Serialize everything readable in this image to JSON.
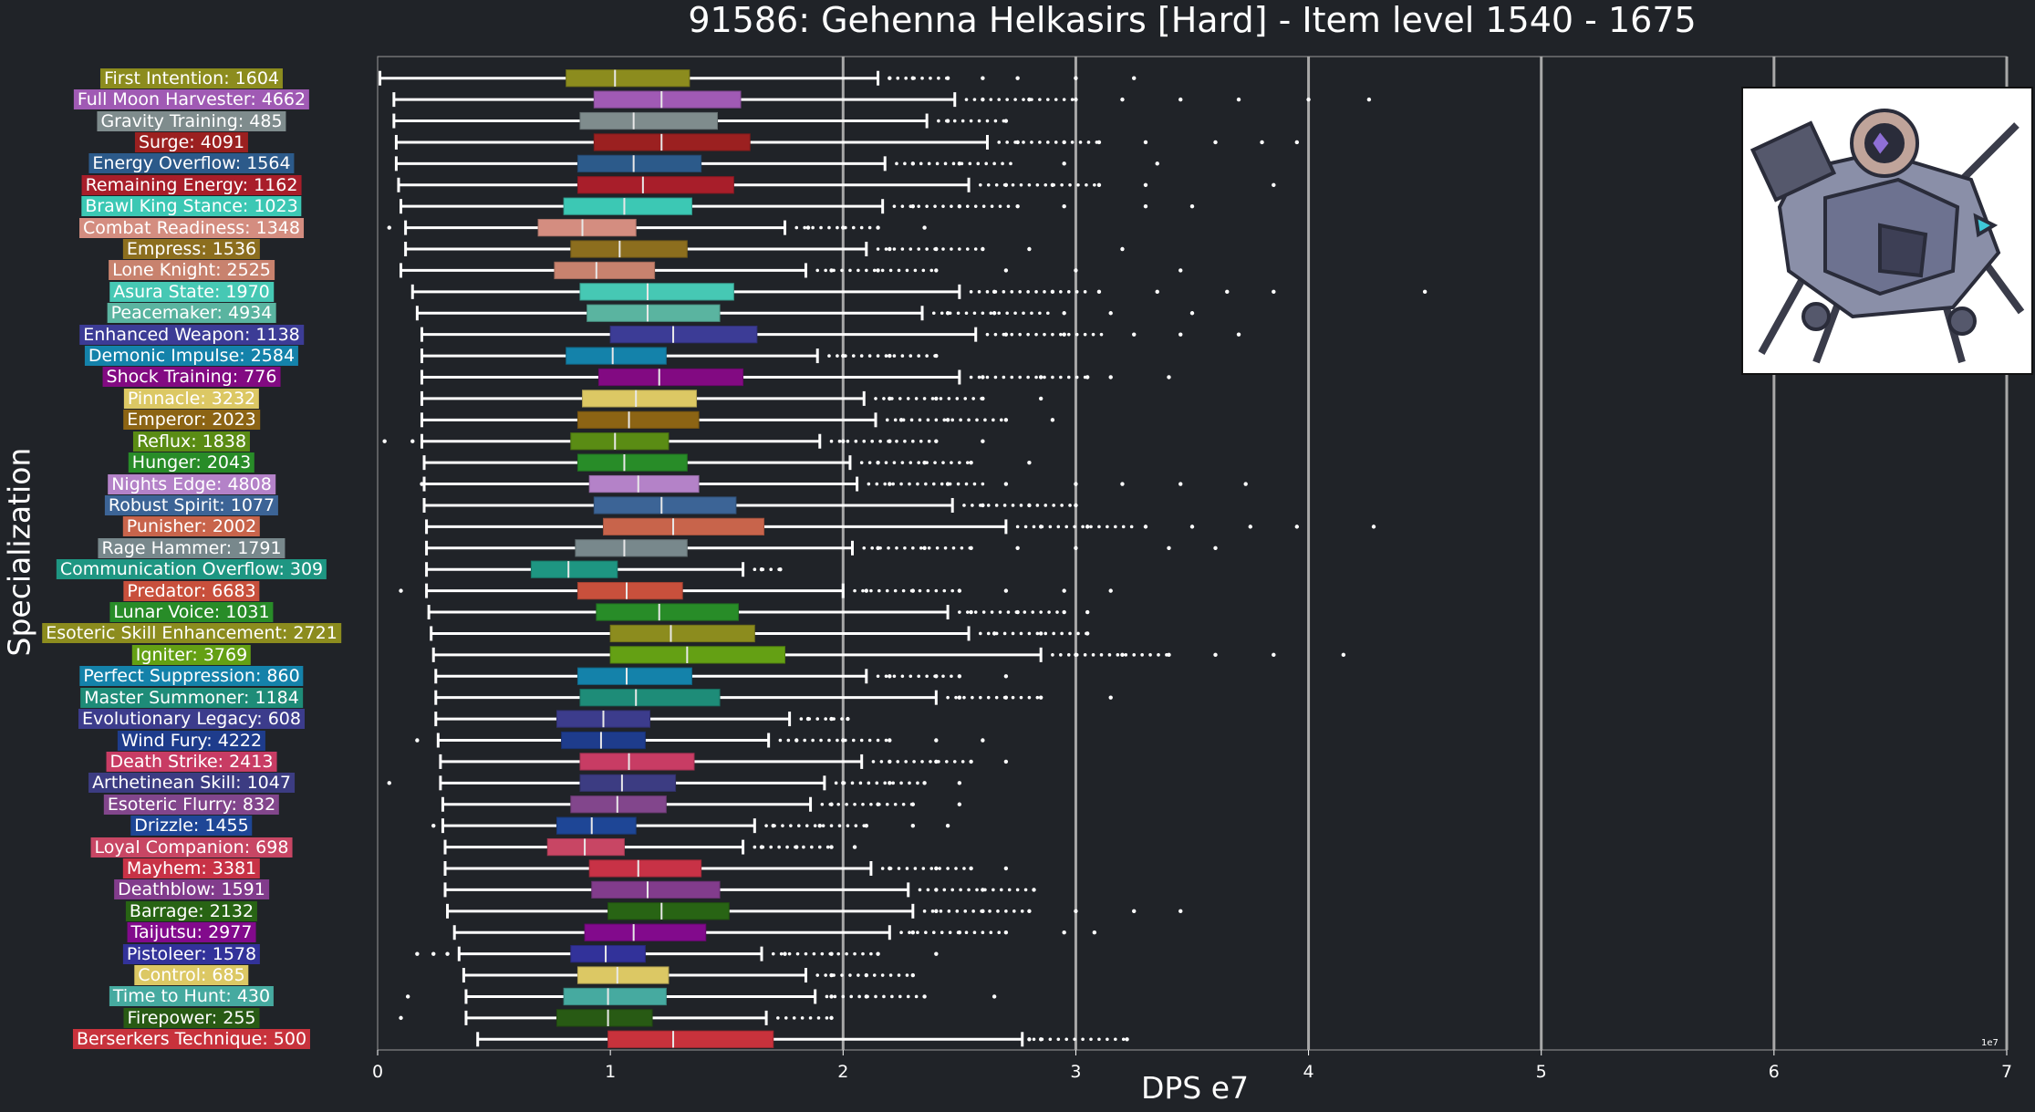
{
  "title": "91586: Gehenna Helkasirs [Hard] - Item level 1540 - 1675",
  "xlabel": "DPS e7",
  "ylabel": "Specialization",
  "exponent_label": "1e7",
  "boss_portrait": "helkasirs-portrait",
  "chart_data": {
    "type": "boxplot",
    "orientation": "horizontal",
    "xlim": [
      0,
      7
    ],
    "x_ticks": [
      0,
      1,
      2,
      3,
      4,
      5,
      6,
      7
    ],
    "x_grid": true,
    "grid_lines": [
      2,
      3,
      4,
      5,
      6,
      7
    ],
    "units": "1e7",
    "series": [
      {
        "label": "First Intention: 1604",
        "color": "#8c8c1e",
        "min": 0.01,
        "q1": 0.81,
        "median": 1.02,
        "q3": 1.34,
        "max": 2.15,
        "outliers": [
          2.2,
          2.3,
          2.45,
          2.6,
          2.75,
          3.0,
          3.25
        ]
      },
      {
        "label": "Full Moon Harvester: 4662",
        "color": "#a05ab4",
        "min": 0.07,
        "q1": 0.93,
        "median": 1.22,
        "q3": 1.56,
        "max": 2.48,
        "outliers": [
          2.6,
          2.8,
          3.0,
          3.2,
          3.45,
          3.7,
          4.0,
          4.26
        ]
      },
      {
        "label": "Gravity Training: 485",
        "color": "#7f8c8d",
        "min": 0.07,
        "q1": 0.87,
        "median": 1.1,
        "q3": 1.46,
        "max": 2.36,
        "outliers": [
          2.45,
          2.7
        ]
      },
      {
        "label": "Surge: 4091",
        "color": "#9b2020",
        "min": 0.08,
        "q1": 0.93,
        "median": 1.22,
        "q3": 1.6,
        "max": 2.62,
        "outliers": [
          2.75,
          2.95,
          3.1,
          3.3,
          3.6,
          3.8,
          3.95
        ]
      },
      {
        "label": "Energy Overflow: 1564",
        "color": "#2c5a8a",
        "min": 0.08,
        "q1": 0.86,
        "median": 1.1,
        "q3": 1.39,
        "max": 2.18,
        "outliers": [
          2.3,
          2.5,
          2.95,
          3.35
        ]
      },
      {
        "label": "Remaining Energy: 1162",
        "color": "#a81e2a",
        "min": 0.09,
        "q1": 0.86,
        "median": 1.14,
        "q3": 1.53,
        "max": 2.54,
        "outliers": [
          2.7,
          2.9,
          3.1,
          3.3,
          3.85
        ]
      },
      {
        "label": "Brawl King Stance: 1023",
        "color": "#3cc8b4",
        "min": 0.1,
        "q1": 0.8,
        "median": 1.06,
        "q3": 1.35,
        "max": 2.17,
        "outliers": [
          2.3,
          2.5,
          2.75,
          2.95,
          3.3,
          3.5
        ]
      },
      {
        "label": "Combat Readiness: 1348",
        "color": "#d48d80",
        "min": 0.12,
        "q1": 0.69,
        "median": 0.88,
        "q3": 1.11,
        "max": 1.75,
        "outliers": [
          0.05,
          1.85,
          2.0,
          2.15,
          2.35
        ]
      },
      {
        "label": "Empress: 1536",
        "color": "#8c6e1e",
        "min": 0.12,
        "q1": 0.83,
        "median": 1.04,
        "q3": 1.33,
        "max": 2.1,
        "outliers": [
          2.2,
          2.4,
          2.6,
          2.8,
          3.2
        ]
      },
      {
        "label": "Lone Knight: 2525",
        "color": "#c8826e",
        "min": 0.1,
        "q1": 0.76,
        "median": 0.94,
        "q3": 1.19,
        "max": 1.84,
        "outliers": [
          1.95,
          2.15,
          2.4,
          2.7,
          3.0,
          3.45
        ]
      },
      {
        "label": "Asura State: 1970",
        "color": "#46c8b4",
        "min": 0.15,
        "q1": 0.87,
        "median": 1.16,
        "q3": 1.53,
        "max": 2.5,
        "outliers": [
          2.65,
          2.9,
          3.1,
          3.35,
          3.65,
          3.85,
          4.5
        ]
      },
      {
        "label": "Peacemaker: 4934",
        "color": "#5ab4a0",
        "min": 0.17,
        "q1": 0.9,
        "median": 1.16,
        "q3": 1.47,
        "max": 2.34,
        "outliers": [
          2.45,
          2.65,
          2.95,
          3.15,
          3.5
        ]
      },
      {
        "label": "Enhanced Weapon: 1138",
        "color": "#3c3c96",
        "min": 0.19,
        "q1": 1.0,
        "median": 1.27,
        "q3": 1.63,
        "max": 2.57,
        "outliers": [
          2.7,
          2.95,
          3.25,
          3.45,
          3.7
        ]
      },
      {
        "label": "Demonic Impulse: 2584",
        "color": "#1482aa",
        "min": 0.19,
        "q1": 0.81,
        "median": 1.01,
        "q3": 1.24,
        "max": 1.89,
        "outliers": [
          2.0,
          2.2,
          2.4
        ]
      },
      {
        "label": "Shock Training: 776",
        "color": "#820a82",
        "min": 0.19,
        "q1": 0.95,
        "median": 1.21,
        "q3": 1.57,
        "max": 2.5,
        "outliers": [
          2.6,
          2.85,
          3.05,
          3.15,
          3.4
        ]
      },
      {
        "label": "Pinnacle: 3232",
        "color": "#dcc864",
        "min": 0.19,
        "q1": 0.88,
        "median": 1.11,
        "q3": 1.37,
        "max": 2.09,
        "outliers": [
          2.2,
          2.4,
          2.6,
          2.85
        ]
      },
      {
        "label": "Emperor: 2023",
        "color": "#8c6414",
        "min": 0.19,
        "q1": 0.86,
        "median": 1.08,
        "q3": 1.38,
        "max": 2.14,
        "outliers": [
          2.25,
          2.45,
          2.7,
          2.9
        ]
      },
      {
        "label": "Reflux: 1838",
        "color": "#5a8c14",
        "min": 0.19,
        "q1": 0.83,
        "median": 1.02,
        "q3": 1.25,
        "max": 1.9,
        "outliers": [
          0.03,
          0.15,
          2.0,
          2.2,
          2.4,
          2.6
        ]
      },
      {
        "label": "Hunger: 2043",
        "color": "#288c28",
        "min": 0.2,
        "q1": 0.86,
        "median": 1.06,
        "q3": 1.33,
        "max": 2.03,
        "outliers": [
          2.15,
          2.35,
          2.55,
          2.8
        ]
      },
      {
        "label": "Nights Edge: 4808",
        "color": "#b482c8",
        "min": 0.2,
        "q1": 0.91,
        "median": 1.12,
        "q3": 1.38,
        "max": 2.06,
        "outliers": [
          0.19,
          2.2,
          2.45,
          2.7,
          3.0,
          3.2,
          3.45,
          3.73
        ]
      },
      {
        "label": "Robust Spirit: 1077",
        "color": "#3c6496",
        "min": 0.2,
        "q1": 0.93,
        "median": 1.22,
        "q3": 1.54,
        "max": 2.47,
        "outliers": [
          2.6,
          2.8,
          3.0
        ]
      },
      {
        "label": "Punisher: 2002",
        "color": "#c8644b",
        "min": 0.21,
        "q1": 0.97,
        "median": 1.27,
        "q3": 1.66,
        "max": 2.7,
        "outliers": [
          2.85,
          3.05,
          3.3,
          3.5,
          3.75,
          3.95,
          4.28
        ]
      },
      {
        "label": "Rage Hammer: 1791",
        "color": "#78888c",
        "min": 0.21,
        "q1": 0.85,
        "median": 1.06,
        "q3": 1.33,
        "max": 2.04,
        "outliers": [
          2.15,
          2.35,
          2.55,
          2.75,
          3.0,
          3.4,
          3.6
        ]
      },
      {
        "label": "Communication Overflow: 309",
        "color": "#1e9682",
        "min": 0.21,
        "q1": 0.66,
        "median": 0.82,
        "q3": 1.03,
        "max": 1.57,
        "outliers": [
          1.65,
          1.73
        ]
      },
      {
        "label": "Predator: 6683",
        "color": "#c8503c",
        "min": 0.21,
        "q1": 0.86,
        "median": 1.07,
        "q3": 1.31,
        "max": 2.0,
        "outliers": [
          0.1,
          2.1,
          2.3,
          2.5,
          2.7,
          2.95,
          3.15
        ]
      },
      {
        "label": "Lunar Voice: 1031",
        "color": "#288c28",
        "min": 0.22,
        "q1": 0.94,
        "median": 1.21,
        "q3": 1.55,
        "max": 2.45,
        "outliers": [
          2.55,
          2.75,
          2.95,
          3.05
        ]
      },
      {
        "label": "Esoteric Skill Enhancement: 2721",
        "color": "#8c8c1e",
        "min": 0.23,
        "q1": 1.0,
        "median": 1.26,
        "q3": 1.62,
        "max": 2.54,
        "outliers": [
          2.65,
          2.85,
          3.05
        ]
      },
      {
        "label": "Igniter: 3769",
        "color": "#64a014",
        "min": 0.24,
        "q1": 1.0,
        "median": 1.33,
        "q3": 1.75,
        "max": 2.85,
        "outliers": [
          3.0,
          3.2,
          3.4,
          3.6,
          3.85,
          4.15
        ]
      },
      {
        "label": "Perfect Suppression: 860",
        "color": "#1482aa",
        "min": 0.25,
        "q1": 0.86,
        "median": 1.07,
        "q3": 1.35,
        "max": 2.1,
        "outliers": [
          2.2,
          2.4,
          2.5,
          2.7
        ]
      },
      {
        "label": "Master Summoner: 1184",
        "color": "#1e8c78",
        "min": 0.25,
        "q1": 0.87,
        "median": 1.11,
        "q3": 1.47,
        "max": 2.4,
        "outliers": [
          2.5,
          2.7,
          2.85,
          3.15
        ]
      },
      {
        "label": "Evolutionary Legacy: 608",
        "color": "#3c3c8c",
        "min": 0.25,
        "q1": 0.77,
        "median": 0.97,
        "q3": 1.17,
        "max": 1.77,
        "outliers": [
          1.85,
          1.95,
          2.02
        ]
      },
      {
        "label": "Wind Fury: 4222",
        "color": "#1e3c8c",
        "min": 0.26,
        "q1": 0.79,
        "median": 0.96,
        "q3": 1.15,
        "max": 1.68,
        "outliers": [
          0.17,
          1.8,
          2.0,
          2.2,
          2.4,
          2.6
        ]
      },
      {
        "label": "Death Strike: 2413",
        "color": "#c83c64",
        "min": 0.27,
        "q1": 0.87,
        "median": 1.08,
        "q3": 1.36,
        "max": 2.08,
        "outliers": [
          2.2,
          2.4,
          2.55,
          2.7
        ]
      },
      {
        "label": "Arthetinean Skill: 1047",
        "color": "#3c3c82",
        "min": 0.27,
        "q1": 0.87,
        "median": 1.05,
        "q3": 1.28,
        "max": 1.92,
        "outliers": [
          0.05,
          2.0,
          2.2,
          2.35,
          2.5
        ]
      },
      {
        "label": "Esoteric Flurry: 832",
        "color": "#82468c",
        "min": 0.28,
        "q1": 0.83,
        "median": 1.03,
        "q3": 1.24,
        "max": 1.86,
        "outliers": [
          1.95,
          2.15,
          2.3,
          2.5
        ]
      },
      {
        "label": "Drizzle: 1455",
        "color": "#1e4696",
        "min": 0.28,
        "q1": 0.77,
        "median": 0.92,
        "q3": 1.11,
        "max": 1.62,
        "outliers": [
          0.24,
          1.7,
          1.9,
          2.1,
          2.3,
          2.45
        ]
      },
      {
        "label": "Loyal Companion: 698",
        "color": "#c84664",
        "min": 0.29,
        "q1": 0.73,
        "median": 0.89,
        "q3": 1.06,
        "max": 1.57,
        "outliers": [
          1.65,
          1.8,
          1.95,
          2.05
        ]
      },
      {
        "label": "Mayhem: 3381",
        "color": "#c83246",
        "min": 0.29,
        "q1": 0.91,
        "median": 1.12,
        "q3": 1.39,
        "max": 2.12,
        "outliers": [
          2.2,
          2.4,
          2.55,
          2.7
        ]
      },
      {
        "label": "Deathblow: 1591",
        "color": "#823c8c",
        "min": 0.29,
        "q1": 0.92,
        "median": 1.16,
        "q3": 1.47,
        "max": 2.28,
        "outliers": [
          2.4,
          2.6,
          2.82
        ]
      },
      {
        "label": "Barrage: 2132",
        "color": "#286414",
        "min": 0.3,
        "q1": 0.99,
        "median": 1.22,
        "q3": 1.51,
        "max": 2.3,
        "outliers": [
          2.4,
          2.6,
          2.8,
          3.0,
          3.25,
          3.45
        ]
      },
      {
        "label": "Taijutsu: 2977",
        "color": "#820a8c",
        "min": 0.33,
        "q1": 0.89,
        "median": 1.1,
        "q3": 1.41,
        "max": 2.2,
        "outliers": [
          2.3,
          2.5,
          2.7,
          2.95,
          3.08
        ]
      },
      {
        "label": "Pistoleer: 1578",
        "color": "#32329a",
        "min": 0.35,
        "q1": 0.83,
        "median": 0.98,
        "q3": 1.15,
        "max": 1.65,
        "outliers": [
          0.17,
          0.24,
          0.3,
          1.75,
          1.95,
          2.15,
          2.4
        ]
      },
      {
        "label": "Control: 685",
        "color": "#dcc864",
        "min": 0.37,
        "q1": 0.86,
        "median": 1.03,
        "q3": 1.25,
        "max": 1.84,
        "outliers": [
          1.95,
          2.1,
          2.3
        ]
      },
      {
        "label": "Time to Hunt: 430",
        "color": "#46aaa0",
        "min": 0.38,
        "q1": 0.8,
        "median": 0.99,
        "q3": 1.24,
        "max": 1.88,
        "outliers": [
          0.13,
          1.95,
          2.1,
          2.35,
          2.65
        ]
      },
      {
        "label": "Firepower: 255",
        "color": "#285a14",
        "min": 0.38,
        "q1": 0.77,
        "median": 0.99,
        "q3": 1.18,
        "max": 1.67,
        "outliers": [
          0.1,
          1.95
        ]
      },
      {
        "label": "Berserkers Technique: 500",
        "color": "#c8323c",
        "min": 0.43,
        "q1": 0.99,
        "median": 1.27,
        "q3": 1.7,
        "max": 2.77,
        "outliers": [
          2.8,
          2.85,
          3.22
        ]
      }
    ]
  }
}
